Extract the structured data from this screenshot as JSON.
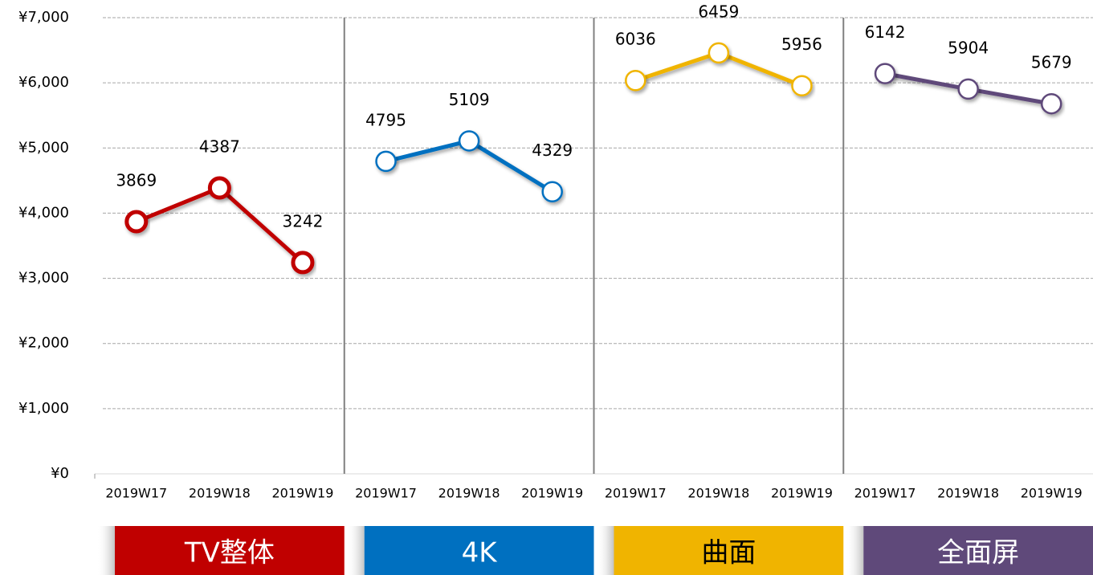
{
  "chart_data": {
    "type": "line",
    "categories": [
      "2019W17",
      "2019W18",
      "2019W19",
      "2019W17",
      "2019W18",
      "2019W19",
      "2019W17",
      "2019W18",
      "2019W19",
      "2019W17",
      "2019W18",
      "2019W19"
    ],
    "series": [
      {
        "name": "TV整体",
        "color": "#c00000",
        "values": [
          3869,
          4387,
          3242,
          null,
          null,
          null,
          null,
          null,
          null,
          null,
          null,
          null
        ]
      },
      {
        "name": "4K",
        "color": "#0070c0",
        "values": [
          null,
          null,
          null,
          4795,
          5109,
          4329,
          null,
          null,
          null,
          null,
          null,
          null
        ]
      },
      {
        "name": "曲面",
        "color": "#f0b400",
        "values": [
          null,
          null,
          null,
          null,
          null,
          null,
          6036,
          6459,
          5956,
          null,
          null,
          null
        ]
      },
      {
        "name": "全面屏",
        "color": "#5f497a",
        "values": [
          null,
          null,
          null,
          null,
          null,
          null,
          null,
          null,
          null,
          6142,
          5904,
          5679
        ]
      }
    ],
    "ylim": [
      0,
      7000
    ],
    "yticks": [
      {
        "value": 0,
        "label": "¥0"
      },
      {
        "value": 1000,
        "label": "¥1,000"
      },
      {
        "value": 2000,
        "label": "¥2,000"
      },
      {
        "value": 3000,
        "label": "¥3,000"
      },
      {
        "value": 4000,
        "label": "¥4,000"
      },
      {
        "value": 5000,
        "label": "¥5,000"
      },
      {
        "value": 6000,
        "label": "¥6,000"
      },
      {
        "value": 7000,
        "label": "¥7,000"
      }
    ],
    "grid": true
  }
}
